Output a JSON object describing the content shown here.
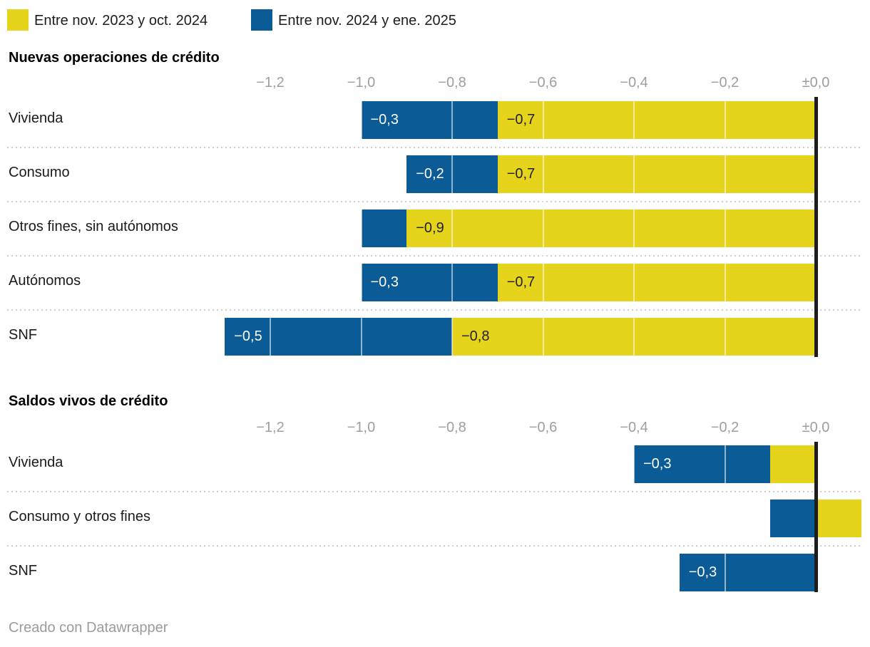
{
  "legend": {
    "items": [
      {
        "label": "Entre nov. 2023 y oct. 2024",
        "color": "#e5d31c"
      },
      {
        "label": "Entre nov. 2024 y ene. 2025",
        "color": "#0b5b96"
      }
    ]
  },
  "footer": {
    "credit": "Creado con Datawrapper"
  },
  "chart_data": [
    {
      "type": "bar",
      "orientation": "horizontal",
      "stacked": true,
      "title": "Nuevas operaciones de crédito",
      "categories": [
        "Vivienda",
        "Consumo",
        "Otros fines, sin autónomos",
        "Autónomos",
        "SNF"
      ],
      "series": [
        {
          "name": "Entre nov. 2023 y oct. 2024",
          "color": "#e5d31c",
          "values": [
            -0.7,
            -0.7,
            -0.9,
            -0.7,
            -0.8
          ],
          "labels": [
            "−0,7",
            "−0,7",
            "−0,9",
            "−0,7",
            "−0,8"
          ],
          "label_color": "#222222"
        },
        {
          "name": "Entre nov. 2024 y ene. 2025",
          "color": "#0b5b96",
          "values": [
            -0.3,
            -0.2,
            -0.1,
            -0.3,
            -0.5
          ],
          "labels": [
            "−0,3",
            "−0,2",
            "",
            "−0,3",
            "−0,5"
          ],
          "label_color": "#ffffff"
        }
      ],
      "xlim": [
        -1.3,
        0.12
      ],
      "xticks": [
        {
          "value": -1.2,
          "label": "−1,2"
        },
        {
          "value": -1.0,
          "label": "−1,0"
        },
        {
          "value": -0.8,
          "label": "−0,8"
        },
        {
          "value": -0.6,
          "label": "−0,6"
        },
        {
          "value": -0.4,
          "label": "−0,4"
        },
        {
          "value": -0.2,
          "label": "−0,2"
        },
        {
          "value": 0.0,
          "label": "±0,0"
        }
      ],
      "grid": true,
      "legend_position": "top"
    },
    {
      "type": "bar",
      "orientation": "horizontal",
      "stacked": true,
      "title": "Saldos vivos de crédito",
      "categories": [
        "Vivienda",
        "Consumo y otros fines",
        "SNF"
      ],
      "series": [
        {
          "name": "Entre nov. 2023 y oct. 2024",
          "color": "#e5d31c",
          "values": [
            -0.1,
            0.1,
            0.0
          ],
          "labels": [
            "",
            "",
            ""
          ],
          "label_color": "#222222"
        },
        {
          "name": "Entre nov. 2024 y ene. 2025",
          "color": "#0b5b96",
          "values": [
            -0.3,
            -0.1,
            -0.3
          ],
          "labels": [
            "−0,3",
            "",
            "−0,3"
          ],
          "label_color": "#ffffff"
        }
      ],
      "xlim": [
        -1.3,
        0.12
      ],
      "xticks": [
        {
          "value": -1.2,
          "label": "−1,2"
        },
        {
          "value": -1.0,
          "label": "−1,0"
        },
        {
          "value": -0.8,
          "label": "−0,8"
        },
        {
          "value": -0.6,
          "label": "−0,6"
        },
        {
          "value": -0.4,
          "label": "−0,4"
        },
        {
          "value": -0.2,
          "label": "−0,2"
        },
        {
          "value": 0.0,
          "label": "±0,0"
        }
      ],
      "grid": true,
      "legend_position": "top"
    }
  ]
}
